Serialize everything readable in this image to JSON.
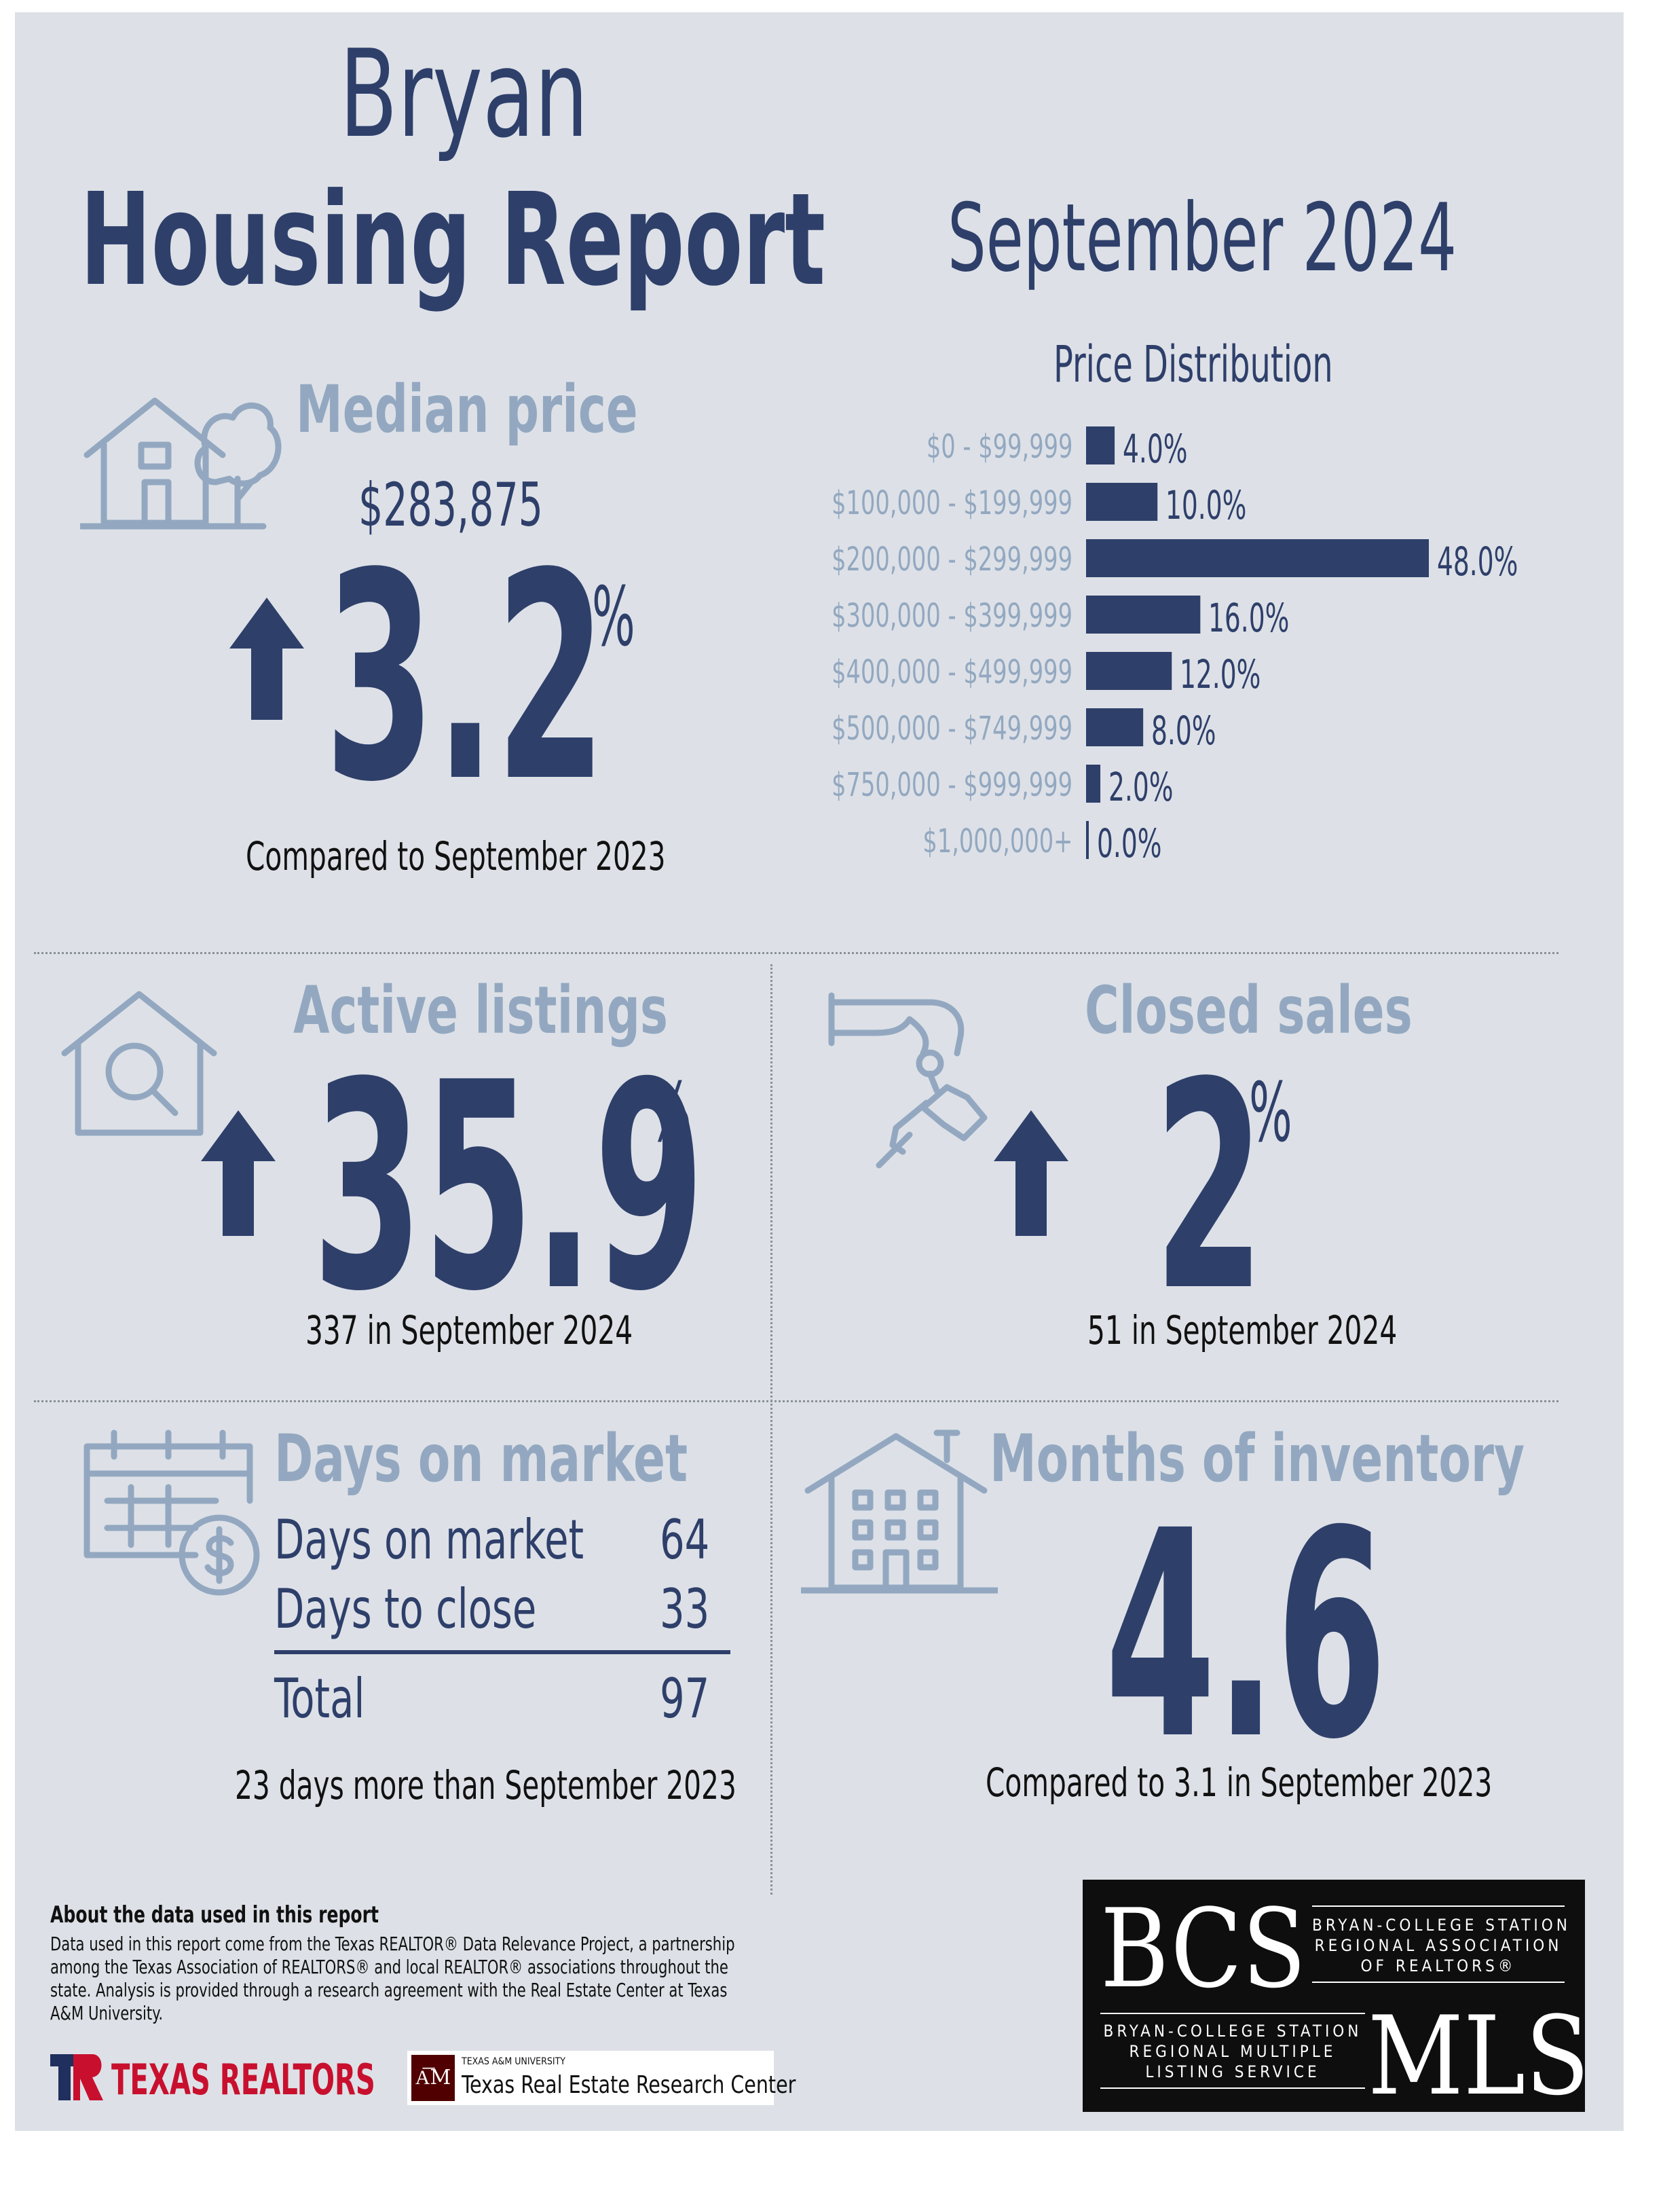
{
  "header": {
    "city": "Bryan",
    "report": "Housing Report",
    "month": "September 2024"
  },
  "median_price": {
    "heading": "Median price",
    "value": "$283,875",
    "change": "3.2",
    "unit": "%",
    "caption": "Compared to September 2023",
    "direction": "up"
  },
  "active_listings": {
    "heading": "Active listings",
    "change": "35.9",
    "unit": "%",
    "caption": "337 in September 2024",
    "direction": "up"
  },
  "closed_sales": {
    "heading": "Closed sales",
    "change": "2",
    "unit": "%",
    "caption": "51 in September 2024",
    "direction": "up"
  },
  "days_on_market": {
    "heading": "Days on market",
    "rows": [
      {
        "label": "Days on market",
        "value": "64"
      },
      {
        "label": "Days to close",
        "value": "33"
      }
    ],
    "total_label": "Total",
    "total_value": "97",
    "caption": "23 days more than September 2023"
  },
  "months_inventory": {
    "heading": "Months of inventory",
    "value": "4.6",
    "caption": "Compared to 3.1 in September 2023"
  },
  "chart_data": {
    "type": "bar",
    "orientation": "horizontal",
    "title": "Price Distribution",
    "categories": [
      "$0 - $99,999",
      "$100,000 - $199,999",
      "$200,000 - $299,999",
      "$300,000 - $399,999",
      "$400,000 - $499,999",
      "$500,000 - $749,999",
      "$750,000 - $999,999",
      "$1,000,000+"
    ],
    "values": [
      4.0,
      10.0,
      48.0,
      16.0,
      12.0,
      8.0,
      2.0,
      0.0
    ],
    "value_labels": [
      "4.0%",
      "10.0%",
      "48.0%",
      "16.0%",
      "12.0%",
      "8.0%",
      "2.0%",
      "0.0%"
    ],
    "xlim": [
      0,
      48
    ],
    "bar_color": "#2e3f6a",
    "grid": false
  },
  "footer": {
    "about_title": "About the data used in this report",
    "about_text": "Data used in this report come from the Texas REALTOR® Data Relevance Project, a partnership among the Texas Association of REALTORS® and local REALTOR® associations throughout the state. Analysis is provided through a research agreement with the Real Estate Center at Texas A&M University.",
    "texas_realtors": "TEXAS REALTORS",
    "tamu_small": "TEXAS A&M UNIVERSITY",
    "tamu_center": "Texas Real Estate Research Center",
    "bcs_mark": "BCS",
    "bcs_assoc": [
      "BRYAN-COLLEGE STATION",
      "REGIONAL ASSOCIATION",
      "OF REALTORS®"
    ],
    "mls_mark": "MLS",
    "mls_service": [
      "BRYAN-COLLEGE STATION",
      "REGIONAL MULTIPLE",
      "LISTING SERVICE"
    ]
  },
  "colors": {
    "navy": "#2e3f6a",
    "light_blue": "#93a8c0",
    "background": "#dde1e7"
  }
}
